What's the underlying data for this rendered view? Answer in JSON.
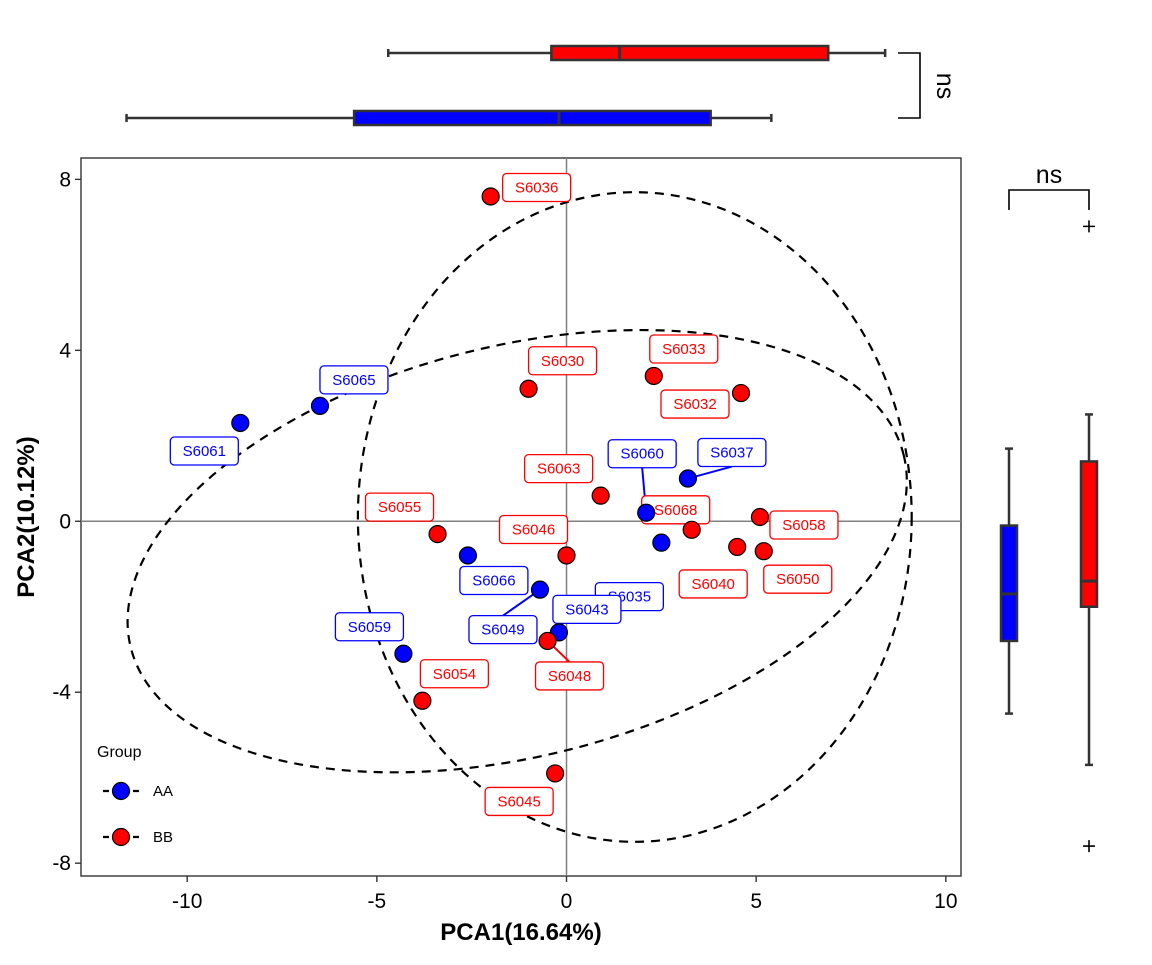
{
  "chart_data": {
    "type": "scatter",
    "xlabel": "PCA1(16.64%)",
    "ylabel": "PCA2(10.12%)",
    "xlim": [
      -12.8,
      10.4
    ],
    "ylim": [
      -8.3,
      8.5
    ],
    "xticks": [
      -10,
      -5,
      0,
      5,
      10
    ],
    "yticks": [
      -8,
      -4,
      0,
      4,
      8
    ],
    "reference_lines": {
      "x": 0,
      "y": 0
    },
    "legend": {
      "title": "Group",
      "position": "bottom-left",
      "entries": [
        "AA",
        "BB"
      ]
    },
    "colors": {
      "AA": "#0000ff",
      "BB": "#ff0000"
    },
    "series": [
      {
        "name": "AA",
        "color": "#0000ff",
        "points": [
          {
            "label": "S6061",
            "x": -8.6,
            "y": 2.3
          },
          {
            "label": "S6065",
            "x": -6.5,
            "y": 2.7
          },
          {
            "label": "S6060",
            "x": 2.1,
            "y": 0.2
          },
          {
            "label": "S6037",
            "x": 3.2,
            "y": 1.0
          },
          {
            "label": "S6035",
            "x": 2.5,
            "y": -0.5
          },
          {
            "label": "S6066",
            "x": -2.6,
            "y": -0.8
          },
          {
            "label": "S6049",
            "x": -0.7,
            "y": -1.6
          },
          {
            "label": "S6043",
            "x": -0.2,
            "y": -2.6
          },
          {
            "label": "S6059",
            "x": -4.3,
            "y": -3.1
          }
        ]
      },
      {
        "name": "BB",
        "color": "#ff0000",
        "points": [
          {
            "label": "S6036",
            "x": -2.0,
            "y": 7.6
          },
          {
            "label": "S6030",
            "x": -1.0,
            "y": 3.1
          },
          {
            "label": "S6033",
            "x": 2.3,
            "y": 3.4
          },
          {
            "label": "S6032",
            "x": 4.6,
            "y": 3.0
          },
          {
            "label": "S6063",
            "x": 0.9,
            "y": 0.6
          },
          {
            "label": "S6068",
            "x": 3.3,
            "y": -0.2
          },
          {
            "label": "S6058",
            "x": 5.1,
            "y": 0.1
          },
          {
            "label": "S6040",
            "x": 4.5,
            "y": -0.6
          },
          {
            "label": "S6050",
            "x": 5.2,
            "y": -0.7
          },
          {
            "label": "S6055",
            "x": -3.4,
            "y": -0.3
          },
          {
            "label": "S6046",
            "x": 0.0,
            "y": -0.8
          },
          {
            "label": "S6048",
            "x": -0.5,
            "y": -2.8
          },
          {
            "label": "S6054",
            "x": -3.8,
            "y": -4.2
          },
          {
            "label": "S6045",
            "x": -0.3,
            "y": -5.9
          }
        ]
      }
    ],
    "ellipses": [
      {
        "group": "AA",
        "center": [
          -1.3,
          -0.7
        ],
        "width_half": 10.5,
        "height_half": 4.8,
        "angle_deg": -14
      },
      {
        "group": "BB",
        "center": [
          1.8,
          0.1
        ],
        "width_half": 7.3,
        "height_half": 7.6,
        "angle_deg": 0
      }
    ],
    "boxplots_pca1": [
      {
        "group": "AA",
        "color": "#0000ff",
        "whisker_low": -11.6,
        "q1": -5.6,
        "median": -0.2,
        "q3": 3.8,
        "whisker_high": 5.4
      },
      {
        "group": "BB",
        "color": "#ff0000",
        "whisker_low": -4.7,
        "q1": -0.4,
        "median": 1.4,
        "q3": 6.9,
        "whisker_high": 8.4
      }
    ],
    "boxplots_pca2": [
      {
        "group": "AA",
        "color": "#0000ff",
        "whisker_low": -4.5,
        "q1": -2.8,
        "median": -1.7,
        "q3": -0.1,
        "whisker_high": 1.7,
        "outliers": []
      },
      {
        "group": "BB",
        "color": "#ff0000",
        "whisker_low": -5.7,
        "q1": -2.0,
        "median": -1.4,
        "q3": 1.4,
        "whisker_high": 2.5,
        "outliers": [
          6.9,
          -7.6
        ]
      }
    ],
    "significance": {
      "pca1": "ns",
      "pca2": "ns"
    }
  }
}
